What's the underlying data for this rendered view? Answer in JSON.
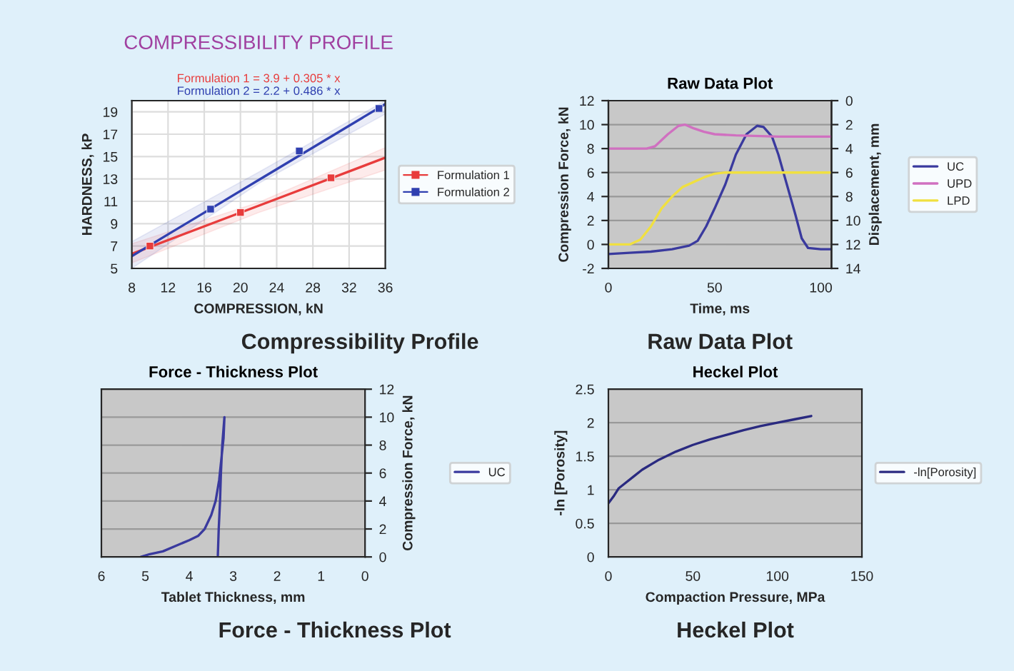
{
  "chart_data": [
    {
      "type": "scatter",
      "title": "COMPRESSIBILITY PROFILE",
      "xlabel": "COMPRESSION, kN",
      "ylabel": "HARDNESS, kP",
      "annotations": [
        "Formulation 1 = 3.9 + 0.305 * x",
        "Formulation 2 = 2.2 + 0.486 * x",
        "Compressibility Profile"
      ],
      "xlim": [
        8,
        36
      ],
      "xticks": [
        8,
        12,
        16,
        20,
        24,
        28,
        32,
        36
      ],
      "ylim": [
        5,
        20
      ],
      "yticks": [
        5,
        7,
        9,
        11,
        13,
        15,
        17,
        19
      ],
      "grid": true,
      "legend": "right",
      "marker": "square",
      "series": [
        {
          "name": "Formulation 1",
          "color": "#e83c3c",
          "type": "scatter",
          "x": [
            10,
            20,
            30
          ],
          "values": [
            7.0,
            10.0,
            13.1
          ]
        },
        {
          "name": "Formulation 2",
          "color": "#3040b0",
          "type": "scatter",
          "x": [
            16.7,
            26.5,
            35.3
          ],
          "values": [
            10.3,
            15.5,
            19.3
          ]
        },
        {
          "color": "#e83c3c",
          "type": "line",
          "marker": "none",
          "x": [
            8,
            22,
            36
          ],
          "values": [
            6.3,
            10.6,
            14.9
          ],
          "lower": [
            5.5,
            10.0,
            13.8
          ],
          "upper": [
            7.2,
            10.9,
            15.8
          ]
        },
        {
          "color": "#3040b0",
          "type": "line",
          "marker": "none",
          "x": [
            8,
            22,
            36
          ],
          "values": [
            6.1,
            12.9,
            19.7
          ],
          "lower": [
            5.0,
            12.6,
            18.8
          ],
          "upper": [
            7.4,
            13.6,
            20.0
          ]
        }
      ]
    },
    {
      "type": "line",
      "title": "Raw Data Plot",
      "xlabel": "Time, ms",
      "ylabel": "Compression Force, kN",
      "y2label": "Displacement, mm",
      "annotations": [
        "Raw Data Plot"
      ],
      "xlim": [
        0,
        105
      ],
      "xticks": [
        0,
        50,
        100
      ],
      "ylim": [
        -2,
        12
      ],
      "yticks": [
        -2,
        0,
        2,
        4,
        6,
        8,
        10,
        12
      ],
      "y2lim": [
        14,
        0
      ],
      "y2ticks": [
        0,
        2,
        4,
        6,
        8,
        10,
        12,
        14
      ],
      "grid": "y",
      "legend": "right",
      "series": [
        {
          "name": "UC",
          "color": "#3a3a9e",
          "x": [
            0,
            10,
            20,
            30,
            38,
            42,
            46,
            50,
            55,
            60,
            65,
            70,
            73,
            77,
            80,
            84,
            88,
            91,
            94,
            100,
            105
          ],
          "values": [
            -0.8,
            -0.7,
            -0.6,
            -0.4,
            -0.1,
            0.3,
            1.5,
            3.0,
            5.0,
            7.5,
            9.2,
            9.9,
            9.8,
            9.0,
            7.5,
            5.0,
            2.5,
            0.5,
            -0.3,
            -0.4,
            -0.4
          ]
        },
        {
          "name": "UPD",
          "color": "#d070c0",
          "axis": "y2",
          "x": [
            0,
            18,
            22,
            28,
            33,
            36,
            40,
            45,
            50,
            60,
            80,
            105
          ],
          "values": [
            4,
            4,
            3.8,
            2.8,
            2.1,
            2.0,
            2.3,
            2.6,
            2.8,
            2.9,
            3.0,
            3.0
          ]
        },
        {
          "name": "LPD",
          "color": "#f0e040",
          "axis": "y2",
          "x": [
            0,
            10,
            15,
            20,
            25,
            30,
            35,
            40,
            45,
            50,
            55,
            105
          ],
          "values": [
            12,
            12,
            11.6,
            10.5,
            9.0,
            8.0,
            7.2,
            6.8,
            6.4,
            6.1,
            6.0,
            6.0
          ]
        }
      ]
    },
    {
      "type": "line",
      "title": "Force - Thickness Plot",
      "xlabel": "Tablet Thickness, mm",
      "ylabel": "Compression Force, kN",
      "annotations": [
        "Force - Thickness Plot"
      ],
      "xlim": [
        6,
        0
      ],
      "xticks": [
        6,
        5,
        4,
        3,
        2,
        1,
        0
      ],
      "ylim": [
        0,
        12
      ],
      "yticks": [
        0,
        2,
        4,
        6,
        8,
        10,
        12
      ],
      "grid": "y",
      "legend": "right",
      "series": [
        {
          "name": "UC",
          "color": "#3a3a9e",
          "x": [
            5.1,
            4.9,
            4.6,
            4.3,
            4.0,
            3.8,
            3.65,
            3.5,
            3.4,
            3.32,
            3.27,
            3.22,
            3.2,
            3.25,
            3.28,
            3.3,
            3.33,
            3.35
          ],
          "values": [
            0,
            0.2,
            0.4,
            0.8,
            1.2,
            1.5,
            2.0,
            3.0,
            4.0,
            5.5,
            7.0,
            8.5,
            10.0,
            8.0,
            6.0,
            4.0,
            2.0,
            0.1
          ]
        }
      ]
    },
    {
      "type": "line",
      "title": "Heckel Plot",
      "xlabel": "Compaction Pressure, MPa",
      "ylabel": "-ln [Porosity]",
      "annotations": [
        "Heckel Plot"
      ],
      "xlim": [
        0,
        150
      ],
      "xticks": [
        0,
        50,
        100,
        150
      ],
      "ylim": [
        0,
        2.5
      ],
      "yticks": [
        0,
        0.5,
        1,
        1.5,
        2,
        2.5
      ],
      "grid": "y",
      "legend": "right",
      "series": [
        {
          "name": "-ln[Porosity]",
          "color": "#2a2a80",
          "x": [
            0,
            3,
            6,
            10,
            15,
            20,
            30,
            40,
            50,
            60,
            70,
            80,
            90,
            100,
            110,
            120
          ],
          "values": [
            0.8,
            0.9,
            1.02,
            1.1,
            1.2,
            1.3,
            1.45,
            1.57,
            1.67,
            1.75,
            1.82,
            1.89,
            1.95,
            2.0,
            2.05,
            2.1
          ]
        }
      ]
    }
  ]
}
